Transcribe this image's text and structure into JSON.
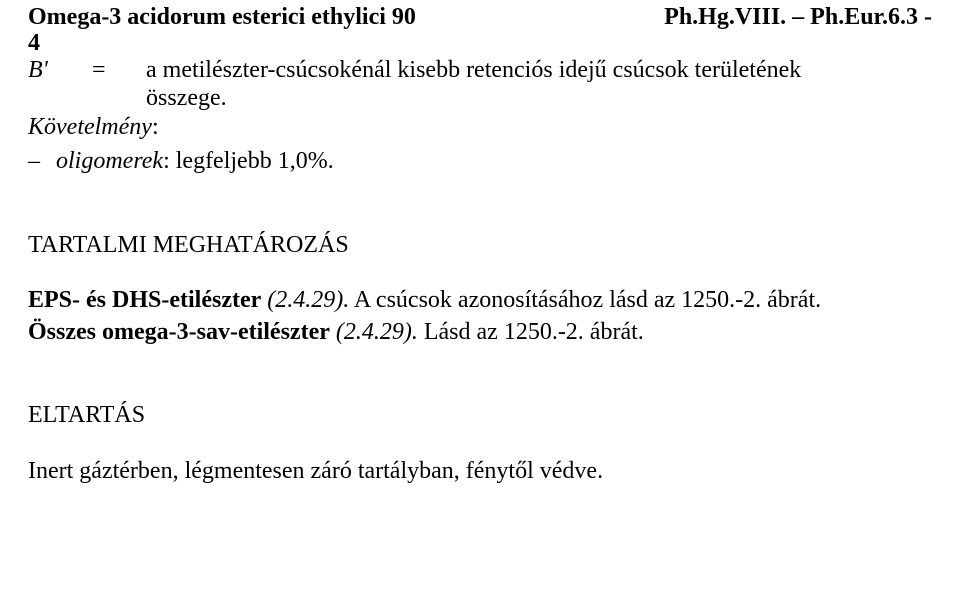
{
  "header": {
    "left": "Omega-3 acidorum esterici ethylici 90",
    "right": "Ph.Hg.VIII. – Ph.Eur.6.3 -"
  },
  "page_number": "4",
  "definition": {
    "symbol": "B'",
    "eq": "=",
    "line1": "a metilészter-csúcsokénál kisebb retenciós idejű csúcsok területének",
    "line2": "összege."
  },
  "requirement_label": "Követelmény",
  "requirement_colon": ":",
  "list_dash": "–",
  "olig_italic": "oligomerek",
  "olig_rest": ": legfeljebb 1,0%.",
  "section1_title": "TARTALMI MEGHATÁROZÁS",
  "eps": {
    "bold": "EPS- és DHS-etilészter",
    "italic": " (2.4.29).",
    "rest": " A csúcsok azonosításához lásd az 1250.-2. ábrát."
  },
  "omega": {
    "bold": "Összes omega-3-sav-etilészter",
    "italic": " (2.4.29).",
    "rest": " Lásd az 1250.-2. ábrát."
  },
  "section2_title": "ELTARTÁS",
  "last_para": "Inert gáztérben, légmentesen záró tartályban, fénytől védve."
}
